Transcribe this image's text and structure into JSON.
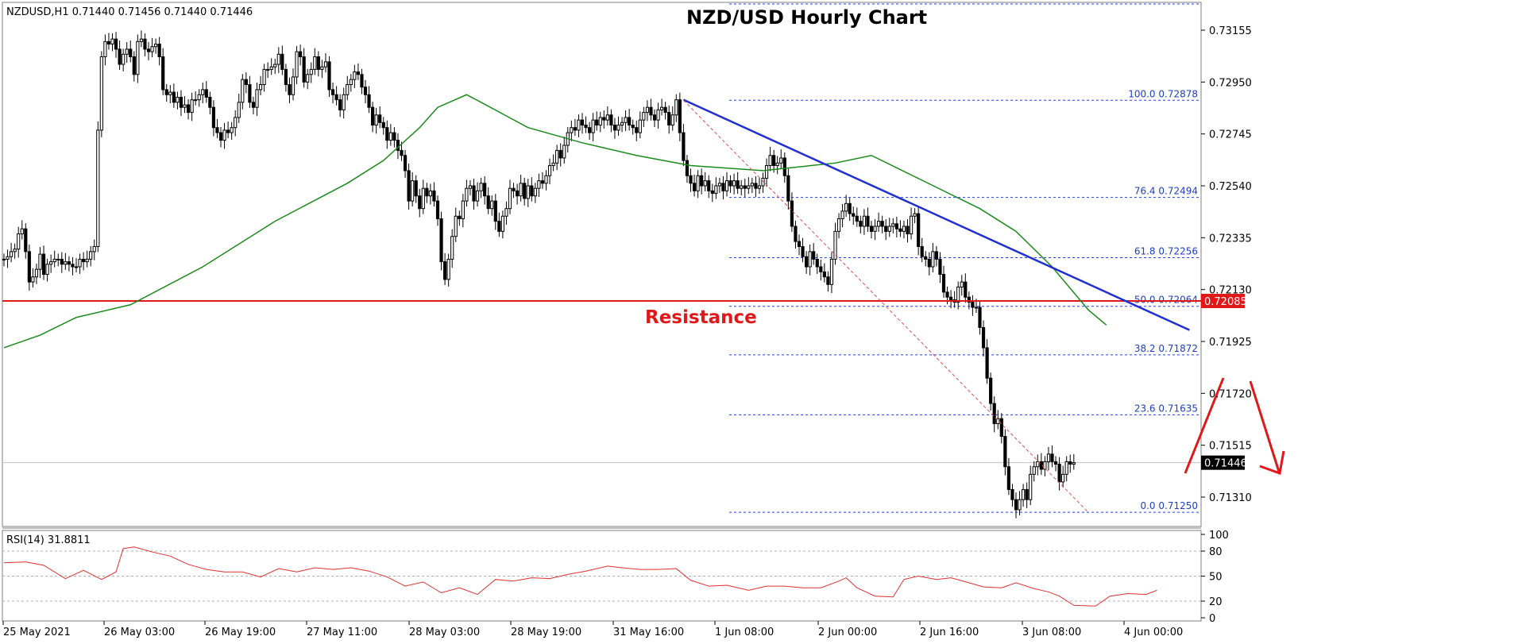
{
  "symbol_info": "NZDUSD,H1  0.71440 0.71456 0.71440 0.71446",
  "title": "NZD/USD Hourly Chart",
  "rsi_label": "RSI(14) 31.8811",
  "colors": {
    "candle": "#000000",
    "ma": "#1a8a1a",
    "trendline": "#1f2fd0",
    "fib_level": "#2a3fe0",
    "resistance": "#e01818",
    "rsi": "#e03030",
    "arrows": "#e01818",
    "diagonal": "#e05050"
  },
  "chart_data": {
    "type": "candlestick",
    "title": "NZD/USD Hourly Chart",
    "symbol": "NZDUSD",
    "timeframe": "H1",
    "ohlc_last": {
      "open": 0.7144,
      "high": 0.71456,
      "low": 0.7144,
      "close": 0.71446
    },
    "x_tick_labels": [
      "25 May 2021",
      "26 May 03:00",
      "26 May 19:00",
      "27 May 11:00",
      "28 May 03:00",
      "28 May 19:00",
      "31 May 16:00",
      "1 Jun 08:00",
      "2 Jun 00:00",
      "2 Jun 16:00",
      "3 Jun 08:00",
      "4 Jun 00:00"
    ],
    "y_tick_labels": [
      "0.73155",
      "0.72950",
      "0.72745",
      "0.72540",
      "0.72335",
      "0.72130",
      "0.71925",
      "0.71720",
      "0.71515",
      "0.71310"
    ],
    "ylim": [
      0.7122,
      0.7322
    ],
    "current_price": "0.71446",
    "resistance": {
      "label": "Resistance",
      "price": 0.72085,
      "price_label": "0.72085"
    },
    "fibonacci": [
      {
        "label": "100.0 0.72878",
        "price": 0.72878
      },
      {
        "label": "76.4 0.72494",
        "price": 0.72494
      },
      {
        "label": "61.8 0.72256",
        "price": 0.72256
      },
      {
        "label": "50.0 0.72064",
        "price": 0.72064
      },
      {
        "label": "38.2 0.71872",
        "price": 0.71872
      },
      {
        "label": "23.6 0.71635",
        "price": 0.71635
      },
      {
        "label": "0.0 0.71250",
        "price": 0.7125
      }
    ],
    "trendline": {
      "from": {
        "bar": 188,
        "price": 0.7288
      },
      "to": {
        "bar": 328,
        "price": 0.7197
      }
    },
    "close_series": [
      0.7225,
      0.7226,
      0.7228,
      0.7229,
      0.7235,
      0.7237,
      0.7228,
      0.7216,
      0.7218,
      0.7221,
      0.7227,
      0.7219,
      0.7223,
      0.7224,
      0.7225,
      0.7225,
      0.7223,
      0.7224,
      0.7223,
      0.7222,
      0.7222,
      0.7225,
      0.7224,
      0.7225,
      0.7228,
      0.723,
      0.7276,
      0.7305,
      0.7311,
      0.731,
      0.7312,
      0.7308,
      0.7302,
      0.7306,
      0.7308,
      0.7305,
      0.7298,
      0.7311,
      0.7312,
      0.7308,
      0.7307,
      0.7309,
      0.731,
      0.7305,
      0.7292,
      0.729,
      0.7291,
      0.7287,
      0.7289,
      0.7285,
      0.7286,
      0.7283,
      0.7288,
      0.7288,
      0.729,
      0.7292,
      0.7289,
      0.7285,
      0.7277,
      0.7275,
      0.7272,
      0.7276,
      0.7275,
      0.7277,
      0.7281,
      0.7287,
      0.7296,
      0.7294,
      0.7287,
      0.7285,
      0.7292,
      0.7294,
      0.73,
      0.73,
      0.7301,
      0.7302,
      0.7306,
      0.73,
      0.7294,
      0.729,
      0.7297,
      0.7307,
      0.7305,
      0.7295,
      0.7298,
      0.73,
      0.7305,
      0.73,
      0.7301,
      0.7303,
      0.7292,
      0.729,
      0.7288,
      0.7284,
      0.729,
      0.7294,
      0.7296,
      0.7299,
      0.7298,
      0.7293,
      0.729,
      0.7285,
      0.7278,
      0.7282,
      0.7279,
      0.7277,
      0.7272,
      0.7275,
      0.7272,
      0.7268,
      0.7266,
      0.726,
      0.7248,
      0.7256,
      0.725,
      0.7245,
      0.7253,
      0.725,
      0.7252,
      0.7248,
      0.7241,
      0.7224,
      0.7217,
      0.7225,
      0.7234,
      0.7242,
      0.7241,
      0.7248,
      0.7253,
      0.7254,
      0.7248,
      0.7252,
      0.7255,
      0.725,
      0.7245,
      0.7248,
      0.724,
      0.7236,
      0.7242,
      0.7245,
      0.7253,
      0.7252,
      0.725,
      0.7255,
      0.7249,
      0.7254,
      0.725,
      0.7253,
      0.7256,
      0.7255,
      0.7258,
      0.7262,
      0.7263,
      0.7268,
      0.7265,
      0.727,
      0.7275,
      0.7277,
      0.7276,
      0.728,
      0.7278,
      0.7277,
      0.7275,
      0.728,
      0.7278,
      0.7281,
      0.728,
      0.7282,
      0.7278,
      0.7276,
      0.7278,
      0.7279,
      0.7281,
      0.7278,
      0.7277,
      0.7275,
      0.728,
      0.7283,
      0.7285,
      0.7282,
      0.728,
      0.7284,
      0.7285,
      0.7283,
      0.7278,
      0.7282,
      0.7288,
      0.7275,
      0.7264,
      0.7258,
      0.7255,
      0.7252,
      0.7258,
      0.7254,
      0.7256,
      0.7252,
      0.7251,
      0.7254,
      0.7255,
      0.7252,
      0.7256,
      0.7254,
      0.7256,
      0.7253,
      0.7254,
      0.7253,
      0.7254,
      0.7255,
      0.7253,
      0.7254,
      0.7257,
      0.7262,
      0.7266,
      0.7262,
      0.7263,
      0.7265,
      0.7258,
      0.7248,
      0.7238,
      0.7232,
      0.723,
      0.7226,
      0.7222,
      0.7228,
      0.7225,
      0.7222,
      0.722,
      0.7218,
      0.7215,
      0.7225,
      0.7236,
      0.7241,
      0.7244,
      0.7247,
      0.7243,
      0.7242,
      0.724,
      0.7238,
      0.7242,
      0.7238,
      0.7236,
      0.7238,
      0.724,
      0.7238,
      0.7236,
      0.7238,
      0.7239,
      0.7237,
      0.7236,
      0.7238,
      0.7235,
      0.7242,
      0.7243,
      0.723,
      0.7226,
      0.7225,
      0.7222,
      0.7228,
      0.7225,
      0.7219,
      0.7212,
      0.721,
      0.7209,
      0.7208,
      0.7214,
      0.7216,
      0.721,
      0.7208,
      0.7206,
      0.7206,
      0.7198,
      0.719,
      0.7178,
      0.7168,
      0.716,
      0.7162,
      0.7155,
      0.7143,
      0.7134,
      0.713,
      0.7126,
      0.713,
      0.7134,
      0.713,
      0.714,
      0.7143,
      0.7145,
      0.7142,
      0.7145,
      0.7148,
      0.7145,
      0.7144,
      0.7137,
      0.714,
      0.7145,
      0.7144,
      0.71446
    ],
    "moving_average": [
      [
        0,
        0.719
      ],
      [
        10,
        0.7195
      ],
      [
        20,
        0.7202
      ],
      [
        35,
        0.7207
      ],
      [
        55,
        0.7222
      ],
      [
        75,
        0.724
      ],
      [
        95,
        0.7255
      ],
      [
        105,
        0.7264
      ],
      [
        115,
        0.7277
      ],
      [
        120,
        0.7285
      ],
      [
        128,
        0.729
      ],
      [
        132,
        0.7287
      ],
      [
        145,
        0.7277
      ],
      [
        160,
        0.7271
      ],
      [
        175,
        0.7266
      ],
      [
        190,
        0.7262
      ],
      [
        210,
        0.726
      ],
      [
        230,
        0.7263
      ],
      [
        240,
        0.7266
      ],
      [
        250,
        0.7259
      ],
      [
        260,
        0.7252
      ],
      [
        270,
        0.7245
      ],
      [
        280,
        0.7236
      ],
      [
        290,
        0.7222
      ],
      [
        300,
        0.7205
      ],
      [
        305,
        0.7199
      ]
    ],
    "rsi": {
      "period": 14,
      "value": 31.8811,
      "ylim": [
        0,
        100
      ],
      "y_tick_labels": [
        "100",
        "80",
        "50",
        "20",
        "0"
      ],
      "levels": [
        80,
        50,
        20
      ],
      "series": [
        [
          0,
          66
        ],
        [
          6,
          67
        ],
        [
          11,
          63
        ],
        [
          17,
          47
        ],
        [
          22,
          57
        ],
        [
          27,
          46
        ],
        [
          31,
          55
        ],
        [
          33,
          83
        ],
        [
          36,
          85
        ],
        [
          41,
          79
        ],
        [
          46,
          74
        ],
        [
          51,
          64
        ],
        [
          56,
          58
        ],
        [
          61,
          55
        ],
        [
          66,
          55
        ],
        [
          71,
          49
        ],
        [
          76,
          59
        ],
        [
          81,
          55
        ],
        [
          86,
          60
        ],
        [
          91,
          58
        ],
        [
          96,
          60
        ],
        [
          101,
          56
        ],
        [
          106,
          49
        ],
        [
          111,
          38
        ],
        [
          116,
          43
        ],
        [
          121,
          30
        ],
        [
          126,
          36
        ],
        [
          131,
          28
        ],
        [
          136,
          46
        ],
        [
          141,
          44
        ],
        [
          146,
          48
        ],
        [
          151,
          47
        ],
        [
          156,
          52
        ],
        [
          161,
          56
        ],
        [
          167,
          62
        ],
        [
          171,
          60
        ],
        [
          176,
          58
        ],
        [
          181,
          58
        ],
        [
          186,
          59
        ],
        [
          190,
          45
        ],
        [
          195,
          38
        ],
        [
          200,
          39
        ],
        [
          206,
          33
        ],
        [
          211,
          38
        ],
        [
          216,
          38
        ],
        [
          221,
          36
        ],
        [
          226,
          36
        ],
        [
          231,
          44
        ],
        [
          233,
          48
        ],
        [
          236,
          36
        ],
        [
          241,
          26
        ],
        [
          246,
          25
        ],
        [
          249,
          46
        ],
        [
          253,
          50
        ],
        [
          258,
          46
        ],
        [
          262,
          48
        ],
        [
          267,
          42
        ],
        [
          271,
          37
        ],
        [
          276,
          36
        ],
        [
          280,
          42
        ],
        [
          285,
          35
        ],
        [
          289,
          31
        ],
        [
          292,
          26
        ],
        [
          296,
          15
        ],
        [
          302,
          14
        ],
        [
          306,
          26
        ],
        [
          311,
          29
        ],
        [
          316,
          28
        ],
        [
          319,
          33
        ]
      ]
    },
    "annotations": [
      "Resistance"
    ]
  }
}
